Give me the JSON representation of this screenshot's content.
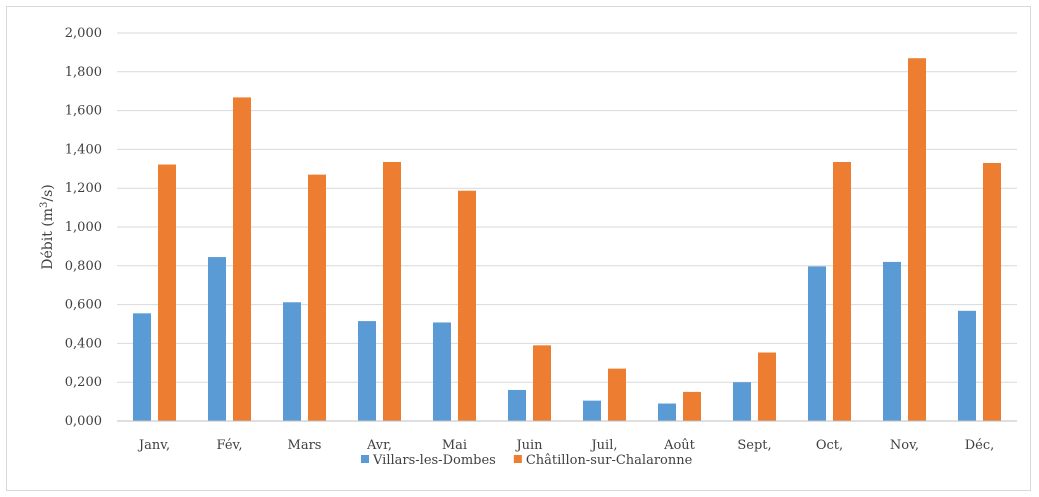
{
  "chart_data": {
    "type": "bar",
    "title": "",
    "xlabel": "",
    "ylabel_main": "Débit (m",
    "ylabel_sup": "3",
    "ylabel_end": "/s)",
    "ylim": [
      0,
      2.0
    ],
    "y_ticks": [
      0,
      0.2,
      0.4,
      0.6,
      0.8,
      1.0,
      1.2,
      1.4,
      1.6,
      1.8,
      2.0
    ],
    "y_tick_labels": [
      "0,000",
      "0,200",
      "0,400",
      "0,600",
      "0,800",
      "1,000",
      "1,200",
      "1,400",
      "1,600",
      "1,800",
      "2,000"
    ],
    "grid": "horizontal",
    "legend_position": "bottom",
    "categories": [
      "Janv,",
      "Fév,",
      "Mars",
      "Avr,",
      "Mai",
      "Juin",
      "Juil,",
      "Août",
      "Sept,",
      "Oct,",
      "Nov,",
      "Déc,"
    ],
    "series": [
      {
        "name": "Villars-les-Dombes",
        "color": "#5b9bd5",
        "values": [
          0.555,
          0.845,
          0.612,
          0.515,
          0.508,
          0.16,
          0.105,
          0.09,
          0.2,
          0.797,
          0.82,
          0.568
        ]
      },
      {
        "name": "Châtillon-sur-Chalaronne",
        "color": "#ed7d31",
        "values": [
          1.322,
          1.668,
          1.27,
          1.335,
          1.187,
          0.39,
          0.27,
          0.15,
          0.353,
          1.335,
          1.87,
          1.33
        ]
      }
    ]
  }
}
